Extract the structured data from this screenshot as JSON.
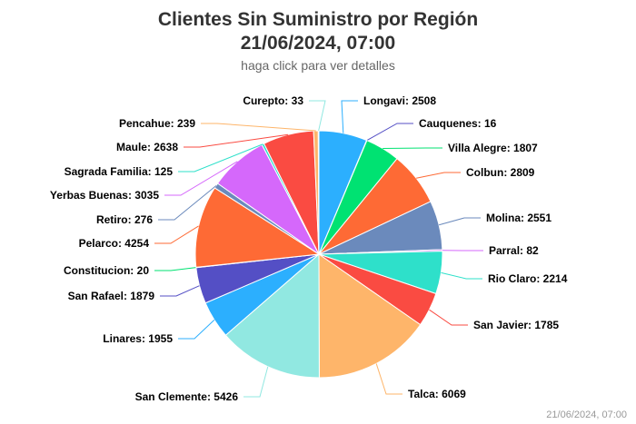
{
  "header": {
    "title_line1": "Clientes Sin Suministro por Región",
    "title_line2": "21/06/2024, 07:00",
    "subtitle": "haga click para ver detalles"
  },
  "credit": "21/06/2024, 07:00",
  "chart_data": {
    "type": "pie",
    "title": "Clientes Sin Suministro por Región\n21/06/2024, 07:00",
    "subtitle": "haga click para ver detalles",
    "series": [
      {
        "values": [
          {
            "label": "Longavi",
            "value": 2508,
            "color": "#2caffe"
          },
          {
            "label": "Cauquenes",
            "value": 16,
            "color": "#544fc5"
          },
          {
            "label": "Villa Alegre",
            "value": 1807,
            "color": "#00e272"
          },
          {
            "label": "Colbun",
            "value": 2809,
            "color": "#fe6a35"
          },
          {
            "label": "Molina",
            "value": 2551,
            "color": "#6b8abc"
          },
          {
            "label": "Parral",
            "value": 82,
            "color": "#d568fb"
          },
          {
            "label": "Rio Claro",
            "value": 2214,
            "color": "#2ee0ca"
          },
          {
            "label": "San Javier",
            "value": 1785,
            "color": "#fa4b42"
          },
          {
            "label": "Talca",
            "value": 6069,
            "color": "#feb56a"
          },
          {
            "label": "San Clemente",
            "value": 5426,
            "color": "#91e8e1"
          },
          {
            "label": "Linares",
            "value": 1955,
            "color": "#2caffe"
          },
          {
            "label": "San Rafael",
            "value": 1879,
            "color": "#544fc5"
          },
          {
            "label": "Constitucion",
            "value": 20,
            "color": "#00e272"
          },
          {
            "label": "Pelarco",
            "value": 4254,
            "color": "#fe6a35"
          },
          {
            "label": "Retiro",
            "value": 276,
            "color": "#6b8abc"
          },
          {
            "label": "Yerbas Buenas",
            "value": 3035,
            "color": "#d568fb"
          },
          {
            "label": "Sagrada Familia",
            "value": 125,
            "color": "#2ee0ca"
          },
          {
            "label": "Maule",
            "value": 2638,
            "color": "#fa4b42"
          },
          {
            "label": "Pencahue",
            "value": 239,
            "color": "#feb56a"
          },
          {
            "label": "Curepto",
            "value": 33,
            "color": "#91e8e1"
          }
        ]
      }
    ],
    "data_labels": [
      "Longavi: 2508",
      "Cauquenes: 16",
      "Villa Alegre: 1807",
      "Colbun: 2809",
      "Molina: 2551",
      "Parral: 82",
      "Rio Claro: 2214",
      "San Javier: 1785",
      "Talca: 6069",
      "San Clemente: 5426",
      "Linares: 1955",
      "San Rafael: 1879",
      "Constitucion: 20",
      "Pelarco: 4254",
      "Retiro: 276",
      "Yerbas Buenas: 3035",
      "Sagrada Familia: 125",
      "Maule: 2638",
      "Pencahue: 239",
      "Curepto: 33"
    ],
    "legend": "none",
    "start_angle": "12 o'clock, clockwise"
  }
}
